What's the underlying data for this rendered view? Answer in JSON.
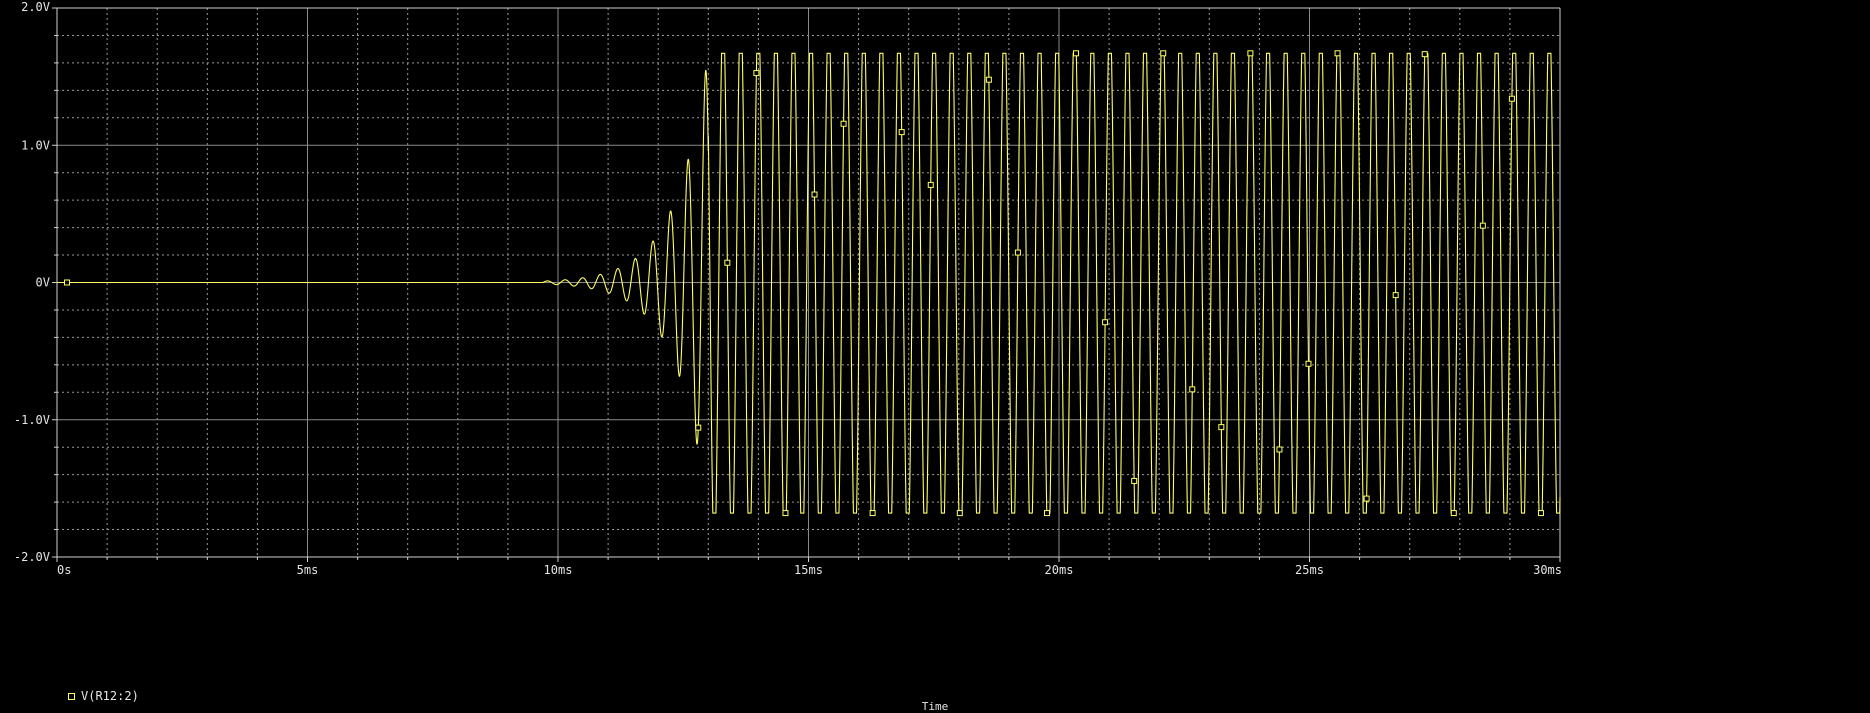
{
  "window": {
    "background": "#000000",
    "grid_color": "#9a9a9a",
    "axis_color": "#d0d0d0"
  },
  "legend": {
    "label": "V(R12:2)",
    "marker": "square-marker-icon"
  },
  "xlabel": "Time",
  "chart_data": {
    "type": "line",
    "title": "",
    "xlabel": "Time",
    "ylabel": "",
    "xlim": [
      0,
      30
    ],
    "ylim": [
      -2.0,
      2.0
    ],
    "x_unit": "ms",
    "x_ticks": [
      0,
      5,
      10,
      15,
      20,
      25,
      30
    ],
    "x_tick_labels": [
      "0s",
      "5ms",
      "10ms",
      "15ms",
      "20ms",
      "25ms",
      "30ms"
    ],
    "y_ticks": [
      -2.0,
      -1.0,
      0,
      1.0,
      2.0
    ],
    "y_tick_labels": [
      "-2.0V",
      "-1.0V",
      "0V",
      "1.0V",
      "2.0V"
    ],
    "grid": true,
    "legend_position": "bottom-left",
    "series": [
      {
        "name": "V(R12:2)",
        "color": "#ffff66",
        "marker": "square",
        "oscillation_start_ms": 9.7,
        "saturation_start_ms": 13.0,
        "steady_state_peak_v": 1.67,
        "steady_state_trough_v": -1.68,
        "frequency_khz": 2.85,
        "initial_value_v": 0.0
      }
    ]
  }
}
